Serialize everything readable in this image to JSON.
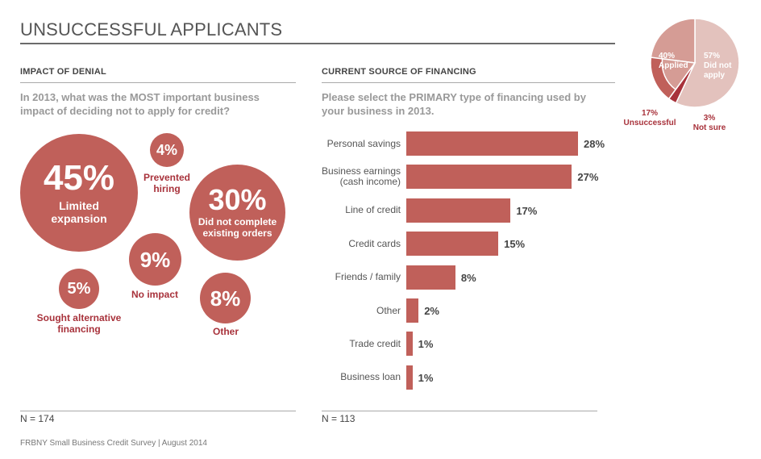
{
  "title": "UNSUCCESSFUL APPLICANTS",
  "left": {
    "heading": "IMPACT OF DENIAL",
    "question": "In 2013, what was the MOST important business impact of deciding not to apply for credit?",
    "n_label": "N = 174"
  },
  "right": {
    "heading": "CURRENT SOURCE OF FINANCING",
    "question": "Please select the PRIMARY type of financing used by your business in 2013.",
    "n_label": "N = 113"
  },
  "source": "FRBNY Small Business Credit Survey  |  August 2014",
  "colors": {
    "bubble": "#c0605a",
    "bar": "#c0605a",
    "label_red": "#a8323b",
    "pie_light": "#e3c2bd",
    "pie_mid": "#d59c95",
    "pie_dark": "#c0605a",
    "pie_accent": "#a8323b"
  },
  "chart_data": [
    {
      "type": "bubble",
      "title": "IMPACT OF DENIAL",
      "unit": "%",
      "items": [
        {
          "label": "Limited expansion",
          "value": 45
        },
        {
          "label": "Did not complete existing orders",
          "value": 30
        },
        {
          "label": "No impact",
          "value": 9
        },
        {
          "label": "Other",
          "value": 8
        },
        {
          "label": "Sought alternative financing",
          "value": 5
        },
        {
          "label": "Prevented hiring",
          "value": 4
        }
      ]
    },
    {
      "type": "bar",
      "orientation": "horizontal",
      "title": "CURRENT SOURCE OF FINANCING",
      "unit": "%",
      "categories": [
        "Personal savings",
        "Business earnings (cash income)",
        "Line of credit",
        "Credit cards",
        "Friends / family",
        "Other",
        "Trade credit",
        "Business loan"
      ],
      "values": [
        28,
        27,
        17,
        15,
        8,
        2,
        1,
        1
      ],
      "xlim": [
        0,
        30
      ]
    },
    {
      "type": "pie",
      "unit": "%",
      "slices": [
        {
          "name": "Did not apply",
          "value": 57
        },
        {
          "name": "Not sure",
          "value": 3
        },
        {
          "name": "Unsuccessful",
          "value": 17
        },
        {
          "name": "Applied",
          "value": 40
        }
      ]
    }
  ],
  "bubbles": {
    "limited": {
      "pct": "45%",
      "label": "Limited expansion"
    },
    "orders": {
      "pct": "30%",
      "label": "Did not complete existing orders"
    },
    "noimpact": {
      "pct": "9%",
      "label": "No impact"
    },
    "other": {
      "pct": "8%",
      "label": "Other"
    },
    "sought": {
      "pct": "5%",
      "label": "Sought alternative financing"
    },
    "hiring": {
      "pct": "4%",
      "label": "Prevented hiring"
    }
  },
  "pie_labels": {
    "applied_pct": "40%",
    "applied": "Applied",
    "didnot_pct": "57%",
    "didnot": "Did not apply",
    "unsuccessful_pct": "17%",
    "unsuccessful": "Unsuccessful",
    "notsure_pct": "3%",
    "notsure": "Not sure"
  }
}
